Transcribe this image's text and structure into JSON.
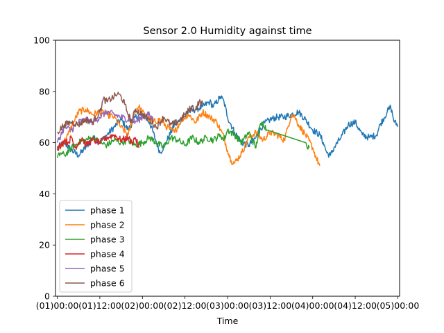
{
  "chart_data": {
    "type": "line",
    "title": "Sensor 2.0 Humidity against  time",
    "xlabel": "Time",
    "ylabel": "",
    "xlim": [
      -0.5,
      96.5
    ],
    "ylim": [
      0,
      100
    ],
    "grid": false,
    "legend_position": "lower-left",
    "x_unit": "hours",
    "x_ticks": [
      {
        "value": 0,
        "label": "(01)00:00"
      },
      {
        "value": 12,
        "label": "(01)12:00"
      },
      {
        "value": 24,
        "label": "(02)00:00"
      },
      {
        "value": 36,
        "label": "(02)12:00"
      },
      {
        "value": 48,
        "label": "(03)00:00"
      },
      {
        "value": 60,
        "label": "(03)12:00"
      },
      {
        "value": 72,
        "label": "(04)00:00"
      },
      {
        "value": 84,
        "label": "(04)12:00"
      },
      {
        "value": 96,
        "label": "(05)00:00"
      }
    ],
    "y_ticks": [
      0,
      20,
      40,
      60,
      80,
      100
    ],
    "series": [
      {
        "name": "phase 1",
        "color": "#1f77b4",
        "points": [
          [
            0,
            58
          ],
          [
            2,
            60
          ],
          [
            4,
            57
          ],
          [
            6,
            55
          ],
          [
            8,
            58
          ],
          [
            10,
            62
          ],
          [
            12,
            60
          ],
          [
            14,
            63
          ],
          [
            16,
            66
          ],
          [
            18,
            69
          ],
          [
            20,
            65
          ],
          [
            22,
            70
          ],
          [
            24,
            71
          ],
          [
            26,
            68
          ],
          [
            28,
            60
          ],
          [
            29,
            56
          ],
          [
            31,
            61
          ],
          [
            33,
            67
          ],
          [
            35,
            69
          ],
          [
            37,
            72
          ],
          [
            39,
            73
          ],
          [
            41,
            74
          ],
          [
            43,
            76
          ],
          [
            44,
            74
          ],
          [
            46,
            78
          ],
          [
            47,
            76
          ],
          [
            48,
            70
          ],
          [
            50,
            64
          ],
          [
            52,
            60
          ],
          [
            54,
            59
          ],
          [
            56,
            62
          ],
          [
            58,
            67
          ],
          [
            60,
            69
          ],
          [
            62,
            70
          ],
          [
            64,
            70
          ],
          [
            66,
            71
          ],
          [
            68,
            72
          ],
          [
            70,
            69
          ],
          [
            72,
            65
          ],
          [
            74,
            63
          ],
          [
            75,
            60
          ],
          [
            76,
            56
          ],
          [
            77,
            55
          ],
          [
            78,
            58
          ],
          [
            80,
            62
          ],
          [
            82,
            67
          ],
          [
            84,
            68
          ],
          [
            86,
            63
          ],
          [
            88,
            62
          ],
          [
            90,
            63
          ],
          [
            91,
            67
          ],
          [
            93,
            72
          ],
          [
            94,
            74
          ],
          [
            95,
            68
          ],
          [
            96,
            67
          ]
        ]
      },
      {
        "name": "phase 2",
        "color": "#ff7f0e",
        "points": [
          [
            1,
            58
          ],
          [
            3,
            63
          ],
          [
            5,
            69
          ],
          [
            6,
            72
          ],
          [
            8,
            73
          ],
          [
            10,
            71
          ],
          [
            12,
            72
          ],
          [
            14,
            71
          ],
          [
            16,
            70
          ],
          [
            18,
            66
          ],
          [
            20,
            63
          ],
          [
            22,
            73
          ],
          [
            23,
            74
          ],
          [
            25,
            70
          ],
          [
            27,
            68
          ],
          [
            29,
            69
          ],
          [
            31,
            66
          ],
          [
            33,
            64
          ],
          [
            35,
            69
          ],
          [
            37,
            71
          ],
          [
            39,
            68
          ],
          [
            41,
            72
          ],
          [
            43,
            70
          ],
          [
            45,
            68
          ],
          [
            47,
            62
          ],
          [
            48,
            57
          ],
          [
            49,
            53
          ],
          [
            50,
            52
          ],
          [
            52,
            56
          ],
          [
            54,
            62
          ],
          [
            56,
            64
          ],
          [
            58,
            61
          ],
          [
            60,
            64
          ],
          [
            62,
            63
          ],
          [
            64,
            61
          ],
          [
            65,
            66
          ],
          [
            66,
            71
          ],
          [
            67,
            70
          ],
          [
            68,
            67
          ],
          [
            70,
            63
          ],
          [
            72,
            58
          ],
          [
            73,
            54
          ],
          [
            74,
            51
          ]
        ]
      },
      {
        "name": "phase 3",
        "color": "#2ca02c",
        "points": [
          [
            0,
            54
          ],
          [
            1,
            56
          ],
          [
            2,
            55
          ],
          [
            4,
            58
          ],
          [
            6,
            60
          ],
          [
            8,
            61
          ],
          [
            10,
            62
          ],
          [
            12,
            60
          ],
          [
            14,
            59
          ],
          [
            16,
            61
          ],
          [
            18,
            60
          ],
          [
            20,
            61
          ],
          [
            22,
            59
          ],
          [
            24,
            60
          ],
          [
            26,
            62
          ],
          [
            28,
            60
          ],
          [
            30,
            58
          ],
          [
            32,
            62
          ],
          [
            34,
            61
          ],
          [
            36,
            59
          ],
          [
            38,
            62
          ],
          [
            40,
            60
          ],
          [
            42,
            62
          ],
          [
            44,
            61
          ],
          [
            46,
            63
          ],
          [
            47,
            61
          ],
          [
            48,
            65
          ],
          [
            50,
            63
          ],
          [
            52,
            60
          ],
          [
            54,
            64
          ],
          [
            56,
            58
          ],
          [
            57,
            66
          ],
          [
            58,
            68
          ],
          [
            59,
            65
          ],
          [
            70,
            60
          ],
          [
            71,
            58
          ]
        ]
      },
      {
        "name": "phase 4",
        "color": "#d62728",
        "points": [
          [
            0,
            57
          ],
          [
            1,
            59
          ],
          [
            2,
            61
          ],
          [
            3,
            60
          ],
          [
            4,
            62
          ],
          [
            5,
            58
          ],
          [
            6,
            60
          ],
          [
            7,
            62
          ],
          [
            8,
            59
          ],
          [
            10,
            61
          ],
          [
            12,
            60
          ],
          [
            14,
            62
          ],
          [
            16,
            63
          ],
          [
            18,
            61
          ],
          [
            20,
            62
          ],
          [
            21,
            60
          ],
          [
            22,
            62
          ],
          [
            23,
            58
          ]
        ]
      },
      {
        "name": "phase 5",
        "color": "#9467bd",
        "points": [
          [
            0,
            60
          ],
          [
            1,
            63
          ],
          [
            2,
            66
          ],
          [
            4,
            65
          ],
          [
            6,
            68
          ],
          [
            8,
            69
          ],
          [
            10,
            68
          ],
          [
            12,
            70
          ],
          [
            14,
            72
          ],
          [
            16,
            71
          ],
          [
            18,
            70
          ],
          [
            20,
            69
          ],
          [
            22,
            68
          ],
          [
            24,
            70
          ],
          [
            26,
            71
          ],
          [
            27,
            69
          ]
        ]
      },
      {
        "name": "phase 6",
        "color": "#8c564b",
        "points": [
          [
            0,
            64
          ],
          [
            2,
            67
          ],
          [
            4,
            68
          ],
          [
            6,
            67
          ],
          [
            8,
            69
          ],
          [
            10,
            68
          ],
          [
            12,
            72
          ],
          [
            13,
            77
          ],
          [
            14,
            76
          ],
          [
            16,
            78
          ],
          [
            17,
            79
          ],
          [
            18,
            78
          ],
          [
            19,
            75
          ],
          [
            20,
            71
          ],
          [
            21,
            68
          ],
          [
            22,
            73
          ],
          [
            24,
            71
          ],
          [
            26,
            69
          ],
          [
            28,
            66
          ],
          [
            30,
            70
          ],
          [
            32,
            67
          ],
          [
            34,
            68
          ],
          [
            36,
            71
          ],
          [
            38,
            74
          ],
          [
            39,
            73
          ],
          [
            40,
            76
          ],
          [
            41,
            75
          ]
        ]
      }
    ]
  }
}
